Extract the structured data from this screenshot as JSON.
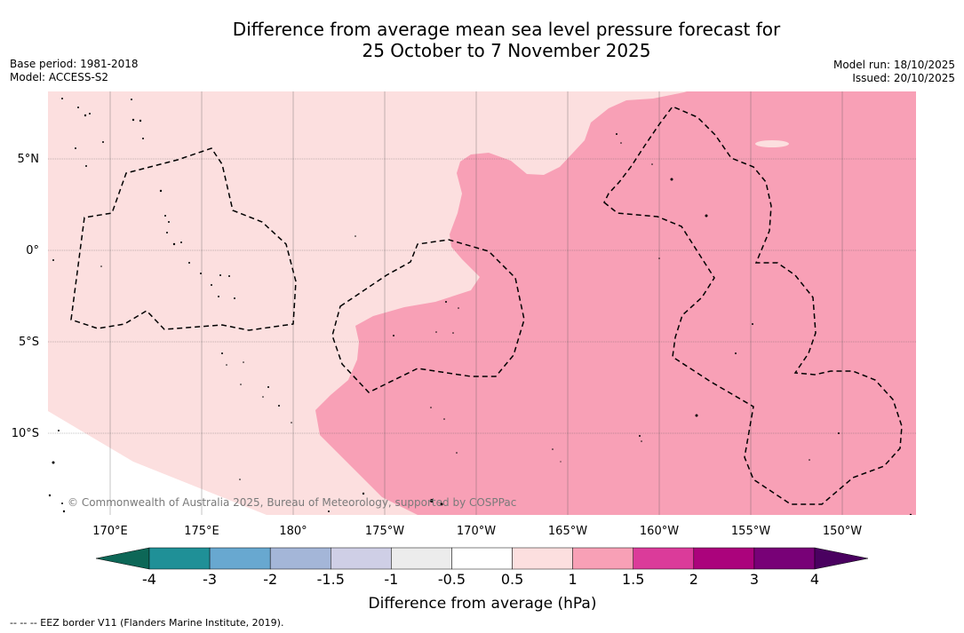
{
  "title": {
    "line1": "Difference from average mean sea level pressure forecast for",
    "line2": "25 October to 7 November 2025"
  },
  "meta_left": {
    "base_period": "Base period: 1981-2018",
    "model": "Model: ACCESS-S2"
  },
  "meta_right": {
    "model_run": "Model run: 18/10/2025",
    "issued": "Issued: 20/10/2025"
  },
  "map": {
    "lon_labels": [
      "170°E",
      "175°E",
      "180°",
      "175°W",
      "170°W",
      "165°W",
      "160°W",
      "155°W",
      "150°W"
    ],
    "lat_labels": [
      "5°N",
      "0°",
      "5°S",
      "10°S"
    ],
    "credit": "© Commonwealth of Australia 2025, Bureau of Meteorology, supported by COSPPac",
    "fill_colors": {
      "low_positive": "#fcdfdf",
      "mid_positive": "#f8a0b6"
    }
  },
  "colorbar": {
    "title": "Difference from average (hPa)",
    "tick_labels": [
      "-4",
      "-3",
      "-2",
      "-1.5",
      "-1",
      "-0.5",
      "0.5",
      "1",
      "1.5",
      "2",
      "3",
      "4"
    ],
    "colors": [
      "#1f9097",
      "#68a8d0",
      "#a4b6d8",
      "#cfcfe6",
      "#ececec",
      "#ffffff",
      "#fcdfdf",
      "#f8a0b6",
      "#db3b9a",
      "#ab037c",
      "#780177"
    ],
    "under_color": "#0d6757",
    "over_color": "#4a0160"
  },
  "footnote": "-- -- -- EEZ border V11 (Flanders Marine Institute, 2019)."
}
